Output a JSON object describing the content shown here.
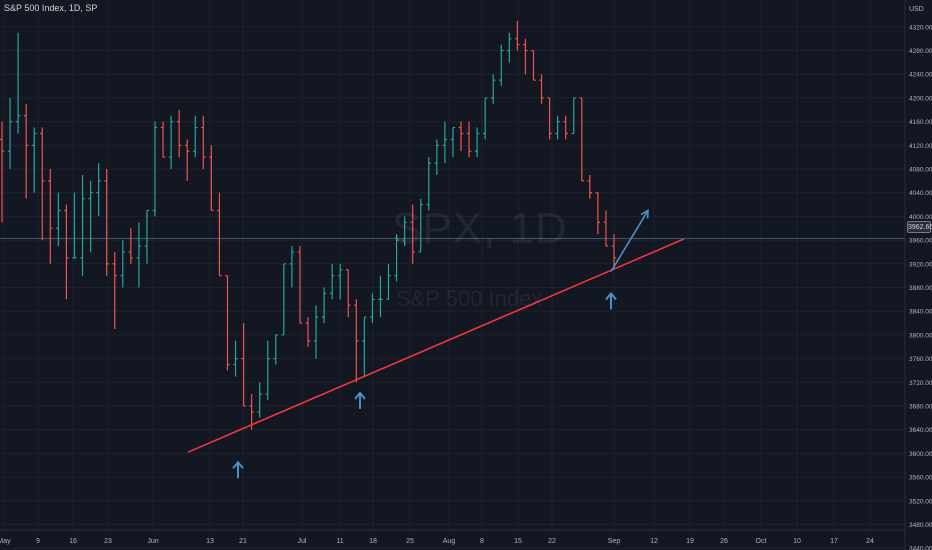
{
  "header": {
    "title": "S&P 500 Index, 1D, SP",
    "currency": "USD"
  },
  "watermark": {
    "symbol": "SPX, 1D",
    "name": "S&P 500 Index"
  },
  "colors": {
    "background": "#131722",
    "grid": "#1e222d",
    "up": "#26a69a",
    "down": "#ef5350",
    "trendline": "#f23645",
    "arrow": "#4a90c2",
    "axis_text": "#b2b5be",
    "crosshair": "#3b5a6b"
  },
  "current_price": "3962.66",
  "chart_data": {
    "type": "ohlc",
    "title": "S&P 500 Index, 1D, SP",
    "xlabel": "",
    "ylabel": "",
    "ylim": [
      3420,
      4340
    ],
    "y_ticks": [
      3440,
      3480,
      3520,
      3560,
      3600,
      3640,
      3680,
      3720,
      3760,
      3800,
      3840,
      3880,
      3920,
      3960,
      4000,
      4040,
      4080,
      4120,
      4160,
      4200,
      4240,
      4280,
      4320
    ],
    "x_ticks": [
      "May",
      "9",
      "16",
      "23",
      "Jun",
      "13",
      "21",
      "Jul",
      "11",
      "18",
      "25",
      "Aug",
      "8",
      "15",
      "22",
      "Sep",
      "12",
      "19",
      "26",
      "Oct",
      "10",
      "17",
      "24"
    ],
    "series": [
      {
        "values": [
          [
            4130,
            4160,
            3990,
            4110
          ],
          [
            4110,
            4200,
            4080,
            4160
          ],
          [
            4160,
            4310,
            4140,
            4170
          ],
          [
            4170,
            4190,
            4030,
            4120
          ],
          [
            4120,
            4150,
            4040,
            4140
          ],
          [
            4140,
            4150,
            3960,
            4060
          ],
          [
            4060,
            4080,
            3920,
            3980
          ],
          [
            3980,
            4040,
            3950,
            4010
          ],
          [
            4010,
            4020,
            3860,
            3930
          ],
          [
            3930,
            4040,
            3930,
            3930
          ],
          [
            3930,
            4070,
            3900,
            4030
          ],
          [
            4030,
            4060,
            3940,
            4040
          ],
          [
            4040,
            4090,
            4000,
            4060
          ],
          [
            4060,
            4080,
            3900,
            3920
          ],
          [
            3920,
            3940,
            3810,
            3900
          ],
          [
            3900,
            3960,
            3880,
            3940
          ],
          [
            3940,
            3980,
            3920,
            3930
          ],
          [
            3930,
            3990,
            3880,
            3950
          ],
          [
            3950,
            4010,
            3920,
            4010
          ],
          [
            4010,
            4160,
            4000,
            4150
          ],
          [
            4150,
            4160,
            4100,
            4100
          ],
          [
            4100,
            4170,
            4080,
            4160
          ],
          [
            4160,
            4180,
            4100,
            4120
          ],
          [
            4120,
            4130,
            4060,
            4110
          ],
          [
            4110,
            4170,
            4100,
            4150
          ],
          [
            4150,
            4170,
            4080,
            4100
          ],
          [
            4100,
            4120,
            4020,
            4010
          ],
          [
            4010,
            4040,
            3900,
            3900
          ],
          [
            3900,
            3840,
            3740,
            3750
          ],
          [
            3750,
            3790,
            3730,
            3760
          ],
          [
            3760,
            3820,
            3680,
            3680
          ],
          [
            3680,
            3700,
            3640,
            3670
          ],
          [
            3670,
            3720,
            3660,
            3700
          ],
          [
            3700,
            3790,
            3690,
            3760
          ],
          [
            3760,
            3800,
            3750,
            3800
          ],
          [
            3800,
            3920,
            3800,
            3920
          ],
          [
            3920,
            3950,
            3880,
            3940
          ],
          [
            3940,
            3950,
            3820,
            3820
          ],
          [
            3820,
            3830,
            3780,
            3790
          ],
          [
            3790,
            3850,
            3760,
            3830
          ],
          [
            3830,
            3880,
            3820,
            3870
          ],
          [
            3870,
            3920,
            3860,
            3900
          ],
          [
            3900,
            3920,
            3860,
            3910
          ],
          [
            3910,
            3890,
            3830,
            3850
          ],
          [
            3850,
            3860,
            3720,
            3790
          ],
          [
            3790,
            3830,
            3730,
            3830
          ],
          [
            3830,
            3870,
            3820,
            3860
          ],
          [
            3860,
            3900,
            3830,
            3860
          ],
          [
            3860,
            3920,
            3860,
            3900
          ],
          [
            3900,
            3970,
            3890,
            3960
          ],
          [
            3960,
            4000,
            3950,
            3990
          ],
          [
            3990,
            4020,
            3920,
            3940
          ],
          [
            3940,
            4030,
            3940,
            4020
          ],
          [
            4020,
            4100,
            4010,
            4090
          ],
          [
            4090,
            4130,
            4070,
            4120
          ],
          [
            4120,
            4160,
            4090,
            4130
          ],
          [
            4130,
            4150,
            4100,
            4150
          ],
          [
            4150,
            4160,
            4110,
            4140
          ],
          [
            4140,
            4160,
            4100,
            4110
          ],
          [
            4110,
            4150,
            4100,
            4140
          ],
          [
            4140,
            4200,
            4130,
            4200
          ],
          [
            4200,
            4240,
            4190,
            4230
          ],
          [
            4230,
            4290,
            4220,
            4280
          ],
          [
            4280,
            4310,
            4260,
            4300
          ],
          [
            4300,
            4330,
            4280,
            4290
          ],
          [
            4290,
            4300,
            4240,
            4280
          ],
          [
            4280,
            4280,
            4240,
            4230
          ],
          [
            4230,
            4240,
            4190,
            4200
          ],
          [
            4200,
            4200,
            4130,
            4140
          ],
          [
            4140,
            4170,
            4130,
            4160
          ],
          [
            4160,
            4170,
            4130,
            4140
          ],
          [
            4140,
            4200,
            4140,
            4200
          ],
          [
            4200,
            4200,
            4060,
            4060
          ],
          [
            4060,
            4070,
            4030,
            4040
          ],
          [
            4040,
            4030,
            3970,
            3990
          ],
          [
            3990,
            4010,
            3960,
            3950
          ],
          [
            3950,
            3970,
            3910,
            3930
          ]
        ]
      }
    ],
    "annotations": {
      "trendline": {
        "from": [
          13.5,
          3602
        ],
        "to": [
          58.5,
          3962
        ]
      },
      "projection_arrow": {
        "from": [
          51,
          3907
        ],
        "to": [
          54.5,
          4010
        ]
      },
      "up_arrows": [
        {
          "x": 31,
          "price": 3585
        },
        {
          "x": 44.5,
          "price": 3702
        },
        {
          "x": 51,
          "price": 3870
        }
      ]
    }
  }
}
